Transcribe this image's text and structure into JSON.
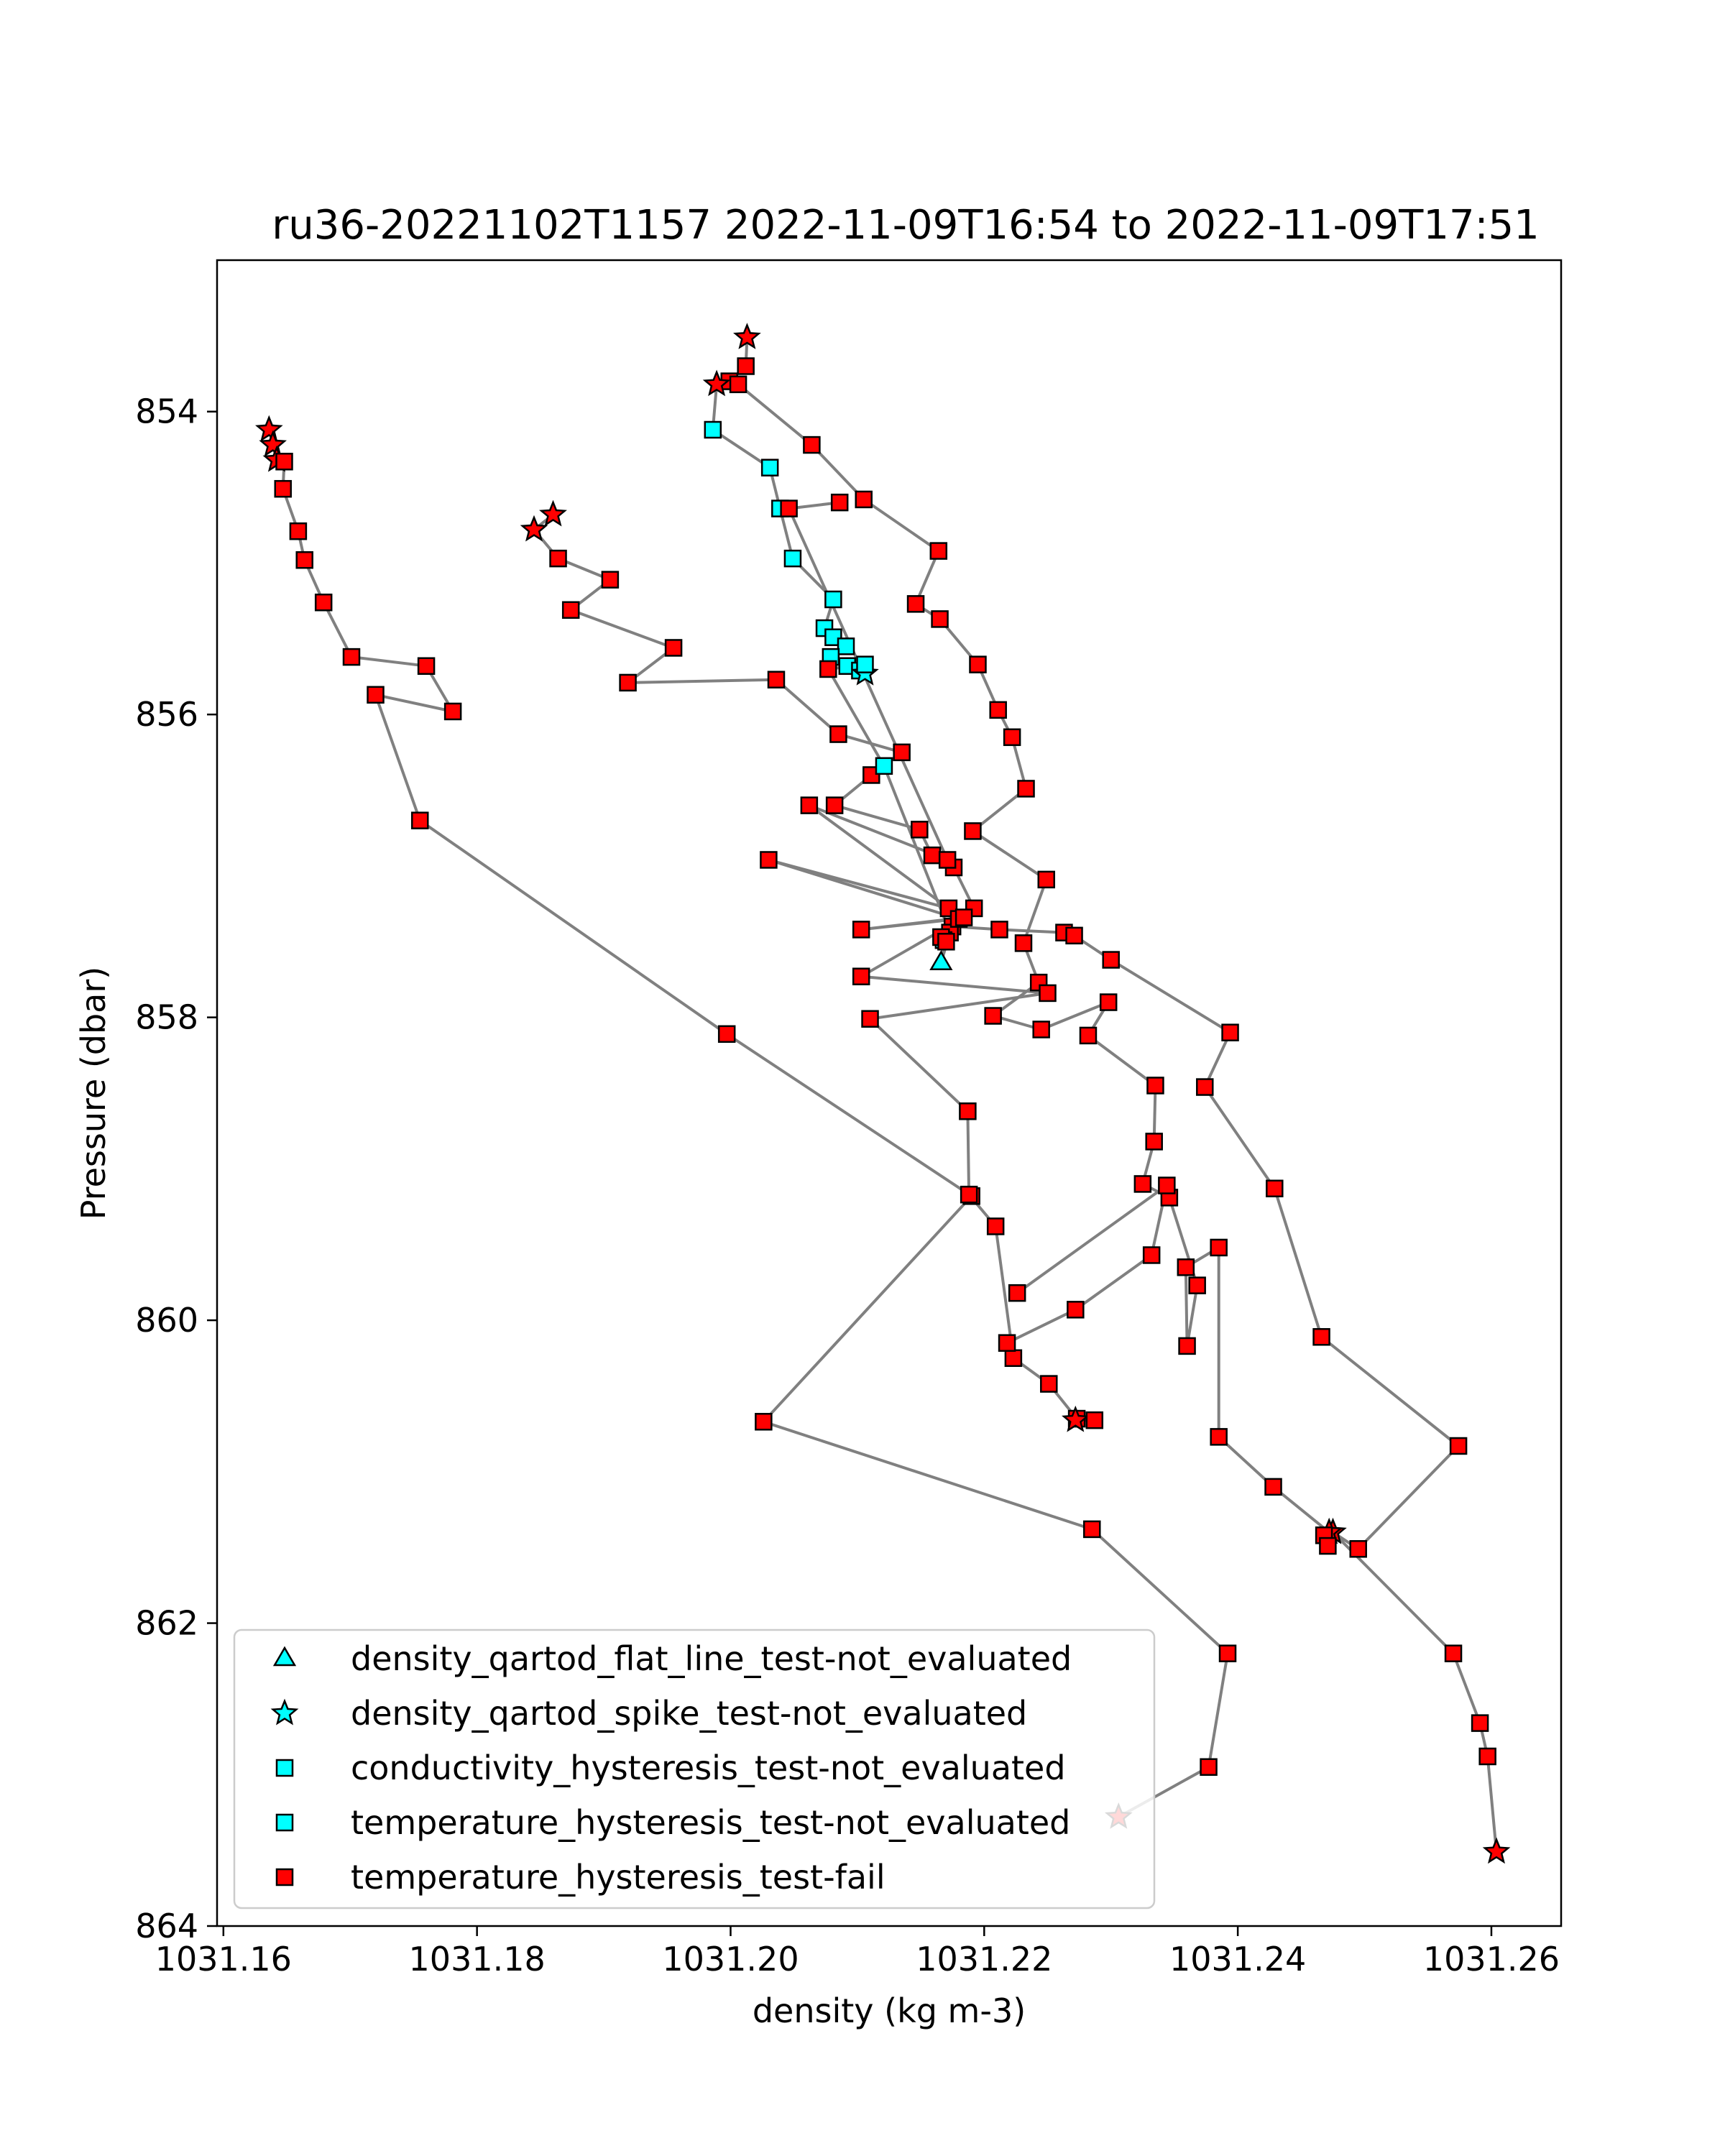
{
  "chart_data": {
    "type": "scatter",
    "title": "ru36-20221102T1157 2022-11-09T16:54 to 2022-11-09T17:51",
    "xlabel": "density (kg m-3)",
    "ylabel": "Pressure (dbar)",
    "xlim": [
      1031.1595,
      1031.2655
    ],
    "ylim": [
      864.0,
      853.0
    ],
    "y_inverted": true,
    "x_ticks": [
      "1031.16",
      "1031.18",
      "1031.20",
      "1031.22",
      "1031.24",
      "1031.26"
    ],
    "x_tick_values": [
      1031.16,
      1031.18,
      1031.2,
      1031.22,
      1031.24,
      1031.26
    ],
    "y_ticks": [
      "854",
      "856",
      "858",
      "860",
      "862",
      "864"
    ],
    "y_tick_values": [
      854,
      856,
      858,
      860,
      862,
      864
    ],
    "grid": false,
    "legend_position": "lower-left",
    "line_color": "#808080",
    "legend": [
      {
        "label": "density_qartod_flat_line_test-not_evaluated",
        "marker": "triangle",
        "color": "#00ffff"
      },
      {
        "label": "density_qartod_spike_test-not_evaluated",
        "marker": "star",
        "color": "#00ffff"
      },
      {
        "label": "conductivity_hysteresis_test-not_evaluated",
        "marker": "square",
        "color": "#00ffff"
      },
      {
        "label": "temperature_hysteresis_test-not_evaluated",
        "marker": "square",
        "color": "#00ffff"
      },
      {
        "label": "temperature_hysteresis_test-fail",
        "marker": "square",
        "color": "#ff0000"
      }
    ],
    "series": [
      {
        "points": [
          [
            1031.1636,
            854.12
          ],
          [
            1031.1639,
            854.22
          ],
          [
            1031.1642,
            854.32
          ],
          [
            1031.1648,
            854.33
          ],
          [
            1031.1647,
            854.51
          ],
          [
            1031.1659,
            854.79
          ],
          [
            1031.1664,
            854.98
          ],
          [
            1031.1679,
            855.26
          ],
          [
            1031.1701,
            855.62
          ],
          [
            1031.176,
            855.68
          ],
          [
            1031.1781,
            855.98
          ],
          [
            1031.172,
            855.87
          ],
          [
            1031.1755,
            856.7
          ],
          [
            1031.1997,
            858.11
          ],
          [
            1031.219,
            859.18
          ],
          [
            1031.2026,
            860.67
          ],
          [
            1031.2285,
            861.38
          ],
          [
            1031.2392,
            862.2
          ],
          [
            1031.2377,
            862.95
          ],
          [
            1031.2306,
            863.28
          ]
        ],
        "markers": [
          "star",
          "star",
          "star",
          "square",
          "square",
          "square",
          "square",
          "square",
          "square",
          "square",
          "square",
          "square",
          "square",
          "square",
          "square",
          "square",
          "square",
          "square",
          "square",
          "star"
        ],
        "colors": [
          "#ff0000",
          "#ff0000",
          "#ff0000",
          "#ff0000",
          "#ff0000",
          "#ff0000",
          "#ff0000",
          "#ff0000",
          "#ff0000",
          "#ff0000",
          "#ff0000",
          "#ff0000",
          "#ff0000",
          "#ff0000",
          "#ff0000",
          "#ff0000",
          "#ff0000",
          "#ff0000",
          "#ff0000",
          "#ff0000"
        ]
      },
      {
        "points": [
          [
            1031.186,
            854.68
          ],
          [
            1031.1845,
            854.78
          ],
          [
            1031.1864,
            854.97
          ],
          [
            1031.1905,
            855.11
          ],
          [
            1031.1874,
            855.31
          ],
          [
            1031.1955,
            855.56
          ],
          [
            1031.1919,
            855.79
          ],
          [
            1031.2036,
            855.77
          ],
          [
            1031.2085,
            856.13
          ],
          [
            1031.2135,
            856.25
          ],
          [
            1031.2111,
            856.4
          ],
          [
            1031.2082,
            856.6
          ],
          [
            1031.2149,
            856.76
          ],
          [
            1031.2159,
            856.93
          ],
          [
            1031.2176,
            857.01
          ],
          [
            1031.2192,
            857.28
          ],
          [
            1031.2175,
            857.4
          ],
          [
            1031.2212,
            857.42
          ],
          [
            1031.2263,
            857.44
          ],
          [
            1031.2271,
            857.46
          ],
          [
            1031.23,
            857.62
          ],
          [
            1031.2394,
            858.1
          ],
          [
            1031.2374,
            858.46
          ],
          [
            1031.2429,
            859.13
          ],
          [
            1031.2466,
            860.11
          ],
          [
            1031.2574,
            860.83
          ],
          [
            1031.2495,
            861.51
          ],
          [
            1031.2475,
            861.4
          ],
          [
            1031.257,
            862.2
          ],
          [
            1031.2591,
            862.66
          ],
          [
            1031.2597,
            862.88
          ],
          [
            1031.2604,
            863.51
          ]
        ],
        "markers": [
          "star",
          "star",
          "square",
          "square",
          "square",
          "square",
          "square",
          "square",
          "square",
          "square",
          "square",
          "square",
          "square",
          "square",
          "square",
          "square",
          "square",
          "square",
          "square",
          "square",
          "square",
          "square",
          "square",
          "square",
          "square",
          "square",
          "square",
          "star",
          "square",
          "square",
          "square",
          "star"
        ],
        "colors": [
          "#ff0000",
          "#ff0000",
          "#ff0000",
          "#ff0000",
          "#ff0000",
          "#ff0000",
          "#ff0000",
          "#ff0000",
          "#ff0000",
          "#ff0000",
          "#ff0000",
          "#ff0000",
          "#ff0000",
          "#ff0000",
          "#ff0000",
          "#ff0000",
          "#ff0000",
          "#ff0000",
          "#ff0000",
          "#ff0000",
          "#ff0000",
          "#ff0000",
          "#ff0000",
          "#ff0000",
          "#ff0000",
          "#ff0000",
          "#ff0000",
          "#ff0000",
          "#ff0000",
          "#ff0000",
          "#ff0000",
          "#ff0000"
        ]
      },
      {
        "points": [
          [
            1031.2013,
            853.51
          ],
          [
            1031.2012,
            853.7
          ],
          [
            1031.1999,
            853.8
          ],
          [
            1031.1989,
            853.82
          ],
          [
            1031.1986,
            854.12
          ],
          [
            1031.2031,
            854.37
          ],
          [
            1031.2039,
            854.64
          ],
          [
            1031.2049,
            854.97
          ],
          [
            1031.2081,
            855.24
          ],
          [
            1031.2074,
            855.43
          ],
          [
            1031.2081,
            855.49
          ],
          [
            1031.2091,
            855.55
          ],
          [
            1031.2079,
            855.62
          ],
          [
            1031.2092,
            855.68
          ],
          [
            1031.2102,
            855.71
          ],
          [
            1031.2106,
            855.73
          ],
          [
            1031.2106,
            855.67
          ],
          [
            1031.2077,
            855.7
          ],
          [
            1031.2121,
            856.34
          ],
          [
            1031.2173,
            857.44
          ],
          [
            1031.2166,
            857.64
          ],
          [
            1031.2168,
            857.49
          ],
          [
            1031.2166,
            857.47
          ],
          [
            1031.217,
            857.5
          ]
        ],
        "markers": [
          "star",
          "square",
          "square",
          "star",
          "square",
          "square",
          "square",
          "square",
          "square",
          "square",
          "square",
          "square",
          "square",
          "square",
          "square",
          "star",
          "square",
          "square",
          "square",
          "square",
          "triangle",
          "square",
          "square",
          "square"
        ],
        "colors": [
          "#ff0000",
          "#ff0000",
          "#ff0000",
          "#ff0000",
          "#00ffff",
          "#00ffff",
          "#00ffff",
          "#00ffff",
          "#00ffff",
          "#00ffff",
          "#00ffff",
          "#00ffff",
          "#00ffff",
          "#00ffff",
          "#00ffff",
          "#00ffff",
          "#00ffff",
          "#ff0000",
          "#00ffff",
          "#ff0000",
          "#00ffff",
          "#00ffff",
          "#ff0000",
          "#ff0000"
        ]
      },
      {
        "points": [
          [
            1031.2006,
            853.82
          ],
          [
            1031.2064,
            854.22
          ],
          [
            1031.2105,
            854.58
          ],
          [
            1031.2164,
            854.92
          ],
          [
            1031.2146,
            855.27
          ],
          [
            1031.2165,
            855.37
          ],
          [
            1031.2195,
            855.67
          ],
          [
            1031.2211,
            855.97
          ],
          [
            1031.2222,
            856.15
          ],
          [
            1031.2233,
            856.49
          ],
          [
            1031.2191,
            856.77
          ],
          [
            1031.2249,
            857.09
          ],
          [
            1031.2231,
            857.51
          ],
          [
            1031.2243,
            857.77
          ],
          [
            1031.2207,
            857.99
          ],
          [
            1031.2245,
            858.08
          ],
          [
            1031.2298,
            857.9
          ],
          [
            1031.2282,
            858.12
          ],
          [
            1031.2335,
            858.45
          ],
          [
            1031.2334,
            858.82
          ],
          [
            1031.2325,
            859.1
          ],
          [
            1031.2346,
            859.19
          ],
          [
            1031.2368,
            859.77
          ],
          [
            1031.236,
            860.17
          ],
          [
            1031.2359,
            859.65
          ],
          [
            1031.2385,
            859.52
          ],
          [
            1031.2385,
            860.77
          ],
          [
            1031.2428,
            861.1
          ],
          [
            1031.2472,
            861.4
          ],
          [
            1031.2468,
            861.42
          ],
          [
            1031.2471,
            861.49
          ]
        ],
        "markers": [
          "square",
          "square",
          "square",
          "square",
          "square",
          "square",
          "square",
          "square",
          "square",
          "square",
          "square",
          "square",
          "square",
          "square",
          "square",
          "square",
          "square",
          "square",
          "square",
          "square",
          "square",
          "square",
          "square",
          "square",
          "square",
          "square",
          "square",
          "square",
          "star",
          "square",
          "square"
        ],
        "colors": [
          "#ff0000",
          "#ff0000",
          "#ff0000",
          "#ff0000",
          "#ff0000",
          "#ff0000",
          "#ff0000",
          "#ff0000",
          "#ff0000",
          "#ff0000",
          "#ff0000",
          "#ff0000",
          "#ff0000",
          "#ff0000",
          "#ff0000",
          "#ff0000",
          "#ff0000",
          "#ff0000",
          "#ff0000",
          "#ff0000",
          "#ff0000",
          "#ff0000",
          "#ff0000",
          "#ff0000",
          "#ff0000",
          "#ff0000",
          "#ff0000",
          "#ff0000",
          "#ff0000",
          "#ff0000",
          "#ff0000"
        ]
      },
      {
        "points": [
          [
            1031.2086,
            854.6
          ],
          [
            1031.2046,
            854.64
          ],
          [
            1031.2171,
            856.96
          ],
          [
            1031.2062,
            856.6
          ],
          [
            1031.2172,
            857.28
          ],
          [
            1031.203,
            856.96
          ],
          [
            1031.218,
            857.35
          ],
          [
            1031.2103,
            857.42
          ],
          [
            1031.2184,
            857.34
          ],
          [
            1031.2103,
            857.73
          ],
          [
            1031.225,
            857.84
          ],
          [
            1031.211,
            858.01
          ],
          [
            1031.2187,
            858.62
          ],
          [
            1031.2188,
            859.17
          ],
          [
            1031.2209,
            859.38
          ],
          [
            1031.2223,
            860.25
          ],
          [
            1031.2251,
            860.42
          ],
          [
            1031.2273,
            860.65
          ],
          [
            1031.2272,
            860.66
          ],
          [
            1031.2287,
            860.66
          ]
        ],
        "markers": [
          "square",
          "square",
          "square",
          "square",
          "square",
          "square",
          "square",
          "square",
          "square",
          "square",
          "square",
          "square",
          "square",
          "square",
          "square",
          "square",
          "square",
          "square",
          "star",
          "square"
        ],
        "colors": [
          "#ff0000",
          "#ff0000",
          "#ff0000",
          "#ff0000",
          "#ff0000",
          "#ff0000",
          "#ff0000",
          "#ff0000",
          "#ff0000",
          "#ff0000",
          "#ff0000",
          "#ff0000",
          "#ff0000",
          "#ff0000",
          "#ff0000",
          "#ff0000",
          "#ff0000",
          "#ff0000",
          "#ff0000",
          "#ff0000"
        ]
      },
      {
        "points": [
          [
            1031.2218,
            860.15
          ],
          [
            1031.2272,
            859.93
          ],
          [
            1031.2332,
            859.57
          ],
          [
            1031.2344,
            859.11
          ],
          [
            1031.2226,
            859.82
          ]
        ],
        "markers": [
          "square",
          "square",
          "square",
          "square",
          "square"
        ],
        "colors": [
          "#ff0000",
          "#ff0000",
          "#ff0000",
          "#ff0000",
          "#ff0000"
        ]
      }
    ]
  }
}
